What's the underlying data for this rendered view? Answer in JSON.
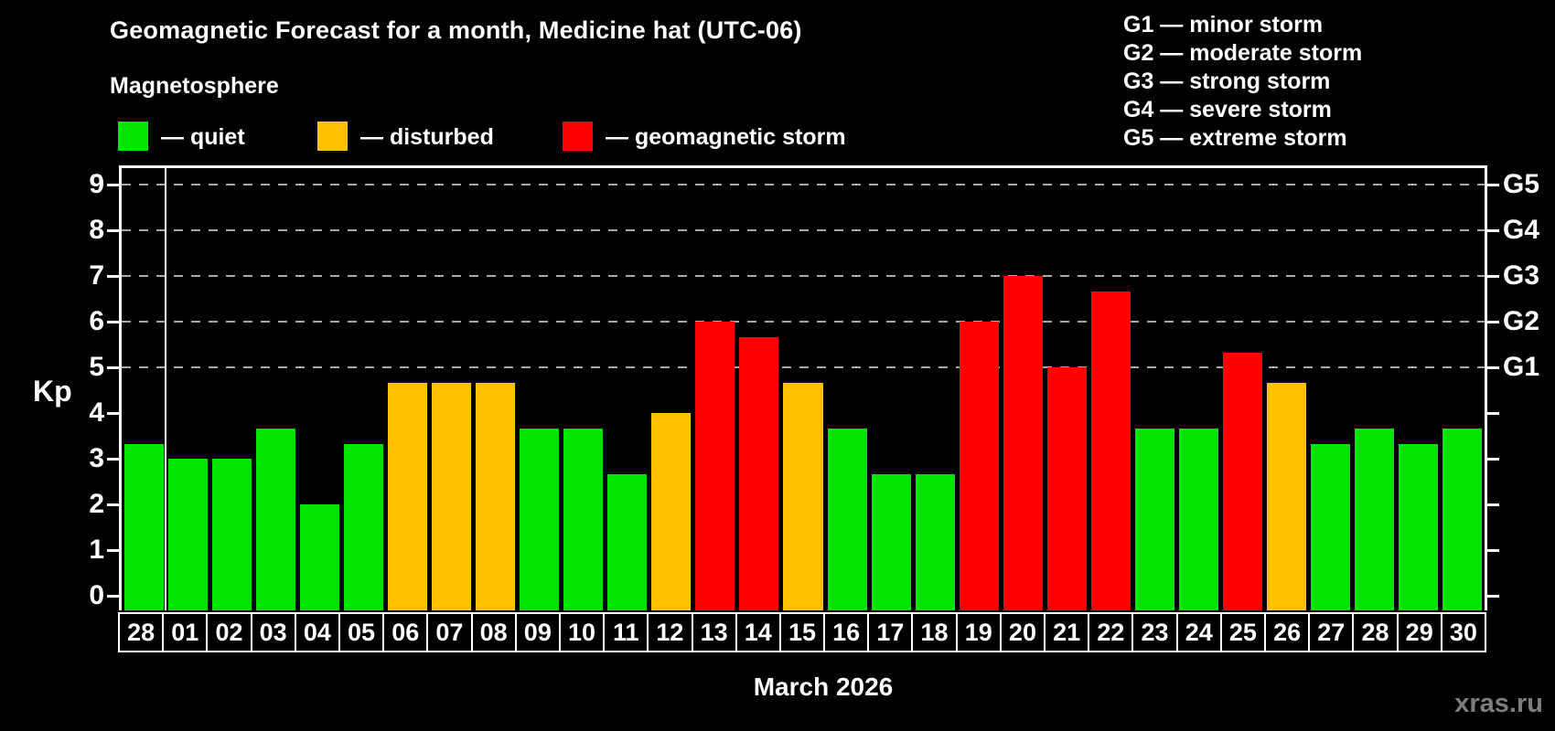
{
  "header": {
    "title": "Geomagnetic Forecast for a month, Medicine hat (UTC-06)",
    "subtitle": "Magnetosphere"
  },
  "legend": {
    "items": [
      {
        "name": "quiet",
        "label": "— quiet",
        "color": "#00e400"
      },
      {
        "name": "disturbed",
        "label": "— disturbed",
        "color": "#ffc000"
      },
      {
        "name": "storm",
        "label": "— geomagnetic storm",
        "color": "#ff0000"
      }
    ]
  },
  "storm_scale": {
    "items": [
      {
        "label": "G1 — minor storm"
      },
      {
        "label": "G2 — moderate storm"
      },
      {
        "label": "G3 — strong storm"
      },
      {
        "label": "G4 — severe storm"
      },
      {
        "label": "G5 — extreme storm"
      }
    ]
  },
  "chart_data": {
    "type": "bar",
    "title": "Geomagnetic Forecast for a month, Medicine hat (UTC-06)",
    "ylabel": "Kp",
    "xlabel": "March 2026",
    "ylim": [
      0,
      9
    ],
    "grid": "dashed horizontal at Kp 5-9",
    "legend_position": "top-left",
    "categories": [
      "28",
      "01",
      "02",
      "03",
      "04",
      "05",
      "06",
      "07",
      "08",
      "09",
      "10",
      "11",
      "12",
      "13",
      "14",
      "15",
      "16",
      "17",
      "18",
      "19",
      "20",
      "21",
      "22",
      "23",
      "24",
      "25",
      "26",
      "27",
      "28",
      "29",
      "30"
    ],
    "values": [
      3.33,
      3,
      3,
      3.67,
      2,
      3.33,
      4.67,
      4.67,
      4.67,
      3.67,
      3.67,
      2.67,
      4,
      6,
      5.67,
      4.67,
      3.67,
      2.67,
      2.67,
      6,
      7,
      5,
      6.67,
      3.67,
      3.67,
      5.33,
      4.67,
      3.33,
      3.67,
      3.33,
      3.67
    ],
    "levels": [
      "quiet",
      "quiet",
      "quiet",
      "quiet",
      "quiet",
      "quiet",
      "disturbed",
      "disturbed",
      "disturbed",
      "quiet",
      "quiet",
      "quiet",
      "disturbed",
      "storm",
      "storm",
      "disturbed",
      "quiet",
      "quiet",
      "quiet",
      "storm",
      "storm",
      "storm",
      "storm",
      "quiet",
      "quiet",
      "storm",
      "disturbed",
      "quiet",
      "quiet",
      "quiet",
      "quiet"
    ],
    "y_ticks": [
      0,
      1,
      2,
      3,
      4,
      5,
      6,
      7,
      8,
      9
    ],
    "gridlines_at": [
      5,
      6,
      7,
      8,
      9
    ],
    "right_axis": {
      "ticks": [
        0,
        1,
        2,
        3,
        4,
        5,
        6,
        7,
        8,
        9
      ],
      "label_positions": [
        5,
        6,
        7,
        8,
        9
      ],
      "labels": [
        "G1",
        "G2",
        "G3",
        "G4",
        "G5"
      ]
    },
    "separator_after_index": 0
  },
  "footer": {
    "xaxis_label": "March 2026",
    "watermark": "xras.ru"
  },
  "colors": {
    "quiet": "#00e400",
    "disturbed": "#ffc000",
    "storm": "#ff0000",
    "grid": "#a8a8a8",
    "axis": "#ffffff",
    "watermark": "#7d7d7d",
    "background": "#000000"
  }
}
